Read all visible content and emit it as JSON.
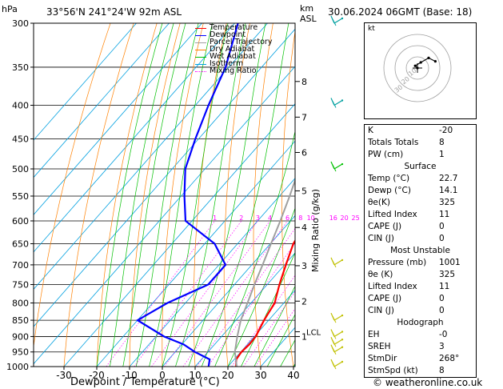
{
  "header": {
    "hpa_unit": "hPa",
    "location": "33°56'N  241°24'W  92m  ASL",
    "km_unit": "km",
    "asl": "ASL",
    "datetime": "30.06.2024  06GMT  (Base: 18)"
  },
  "legend": [
    {
      "label": "Temperature",
      "color": "#ff0000"
    },
    {
      "label": "Dewpoint",
      "color": "#0000ff"
    },
    {
      "label": "Parcel Trajectory",
      "color": "#a0a0a0"
    },
    {
      "label": "Dry Adiabat",
      "color": "#ff8000"
    },
    {
      "label": "Wet Adiabat",
      "color": "#00c000"
    },
    {
      "label": "Isotherm",
      "color": "#00a0e0"
    },
    {
      "label": "Mixing Ratio",
      "color": "#ff00ff"
    }
  ],
  "chart_data": {
    "type": "line",
    "xlabel": "Dewpoint / Temperature (°C)",
    "ylabel": "hPa",
    "right_axis_label": "Mixing Ratio (g/kg)",
    "x_ticks": [
      -30,
      -20,
      -10,
      0,
      10,
      20,
      30,
      40
    ],
    "pressure_ticks": [
      300,
      350,
      400,
      450,
      500,
      550,
      600,
      650,
      700,
      750,
      800,
      850,
      900,
      950,
      1000
    ],
    "km_ticks": [
      {
        "label": "8",
        "p": 368
      },
      {
        "label": "7",
        "p": 417
      },
      {
        "label": "6",
        "p": 472
      },
      {
        "label": "5",
        "p": 540
      },
      {
        "label": "4",
        "p": 614
      },
      {
        "label": "3",
        "p": 702
      },
      {
        "label": "2",
        "p": 795
      },
      {
        "label": "1",
        "p": 900
      }
    ],
    "lcl": {
      "label": "LCL",
      "p": 885
    },
    "mixing_ratio_labels": [
      "1",
      "2",
      "3",
      "4",
      "6",
      "8",
      "10",
      "16",
      "20",
      "25"
    ],
    "mixing_ratio_values": [
      1,
      2,
      3,
      4,
      6,
      8,
      10,
      16,
      20,
      25
    ],
    "series": [
      {
        "name": "Temperature",
        "color": "#ff0000",
        "points": [
          [
            1000,
            22.5
          ],
          [
            975,
            20.6
          ],
          [
            950,
            20.2
          ],
          [
            925,
            20.6
          ],
          [
            900,
            20.4
          ],
          [
            850,
            18.6
          ],
          [
            800,
            17.2
          ],
          [
            750,
            13.7
          ],
          [
            700,
            10.4
          ],
          [
            650,
            7.0
          ],
          [
            600,
            5.2
          ],
          [
            550,
            0.2
          ],
          [
            500,
            -5.0
          ],
          [
            450,
            -11.6
          ],
          [
            400,
            -19.0
          ],
          [
            350,
            -27.4
          ],
          [
            300,
            -37.7
          ]
        ]
      },
      {
        "name": "Dewpoint",
        "color": "#0000ff",
        "points": [
          [
            1000,
            14.1
          ],
          [
            975,
            12.5
          ],
          [
            950,
            6.0
          ],
          [
            925,
            0.5
          ],
          [
            900,
            -7.5
          ],
          [
            850,
            -20.0
          ],
          [
            800,
            -15.5
          ],
          [
            750,
            -8.0
          ],
          [
            700,
            -8.0
          ],
          [
            650,
            -17.0
          ],
          [
            600,
            -32.0
          ],
          [
            550,
            -39.0
          ],
          [
            500,
            -46.0
          ],
          [
            450,
            -51.0
          ],
          [
            400,
            -56.0
          ],
          [
            350,
            -61.0
          ],
          [
            300,
            -69.0
          ]
        ]
      },
      {
        "name": "Parcel Trajectory",
        "color": "#a0a0a0",
        "points": [
          [
            1000,
            22.7
          ],
          [
            950,
            18.2
          ],
          [
            900,
            14.8
          ],
          [
            850,
            11.5
          ],
          [
            800,
            8.9
          ],
          [
            750,
            6.1
          ],
          [
            700,
            3.3
          ],
          [
            650,
            0.2
          ],
          [
            600,
            -3.1
          ],
          [
            550,
            -6.9
          ],
          [
            500,
            -11.3
          ],
          [
            450,
            -16.4
          ],
          [
            400,
            -22.4
          ],
          [
            350,
            -29.5
          ],
          [
            300,
            -38.0
          ]
        ]
      }
    ],
    "wind_barbs": [
      {
        "p": 1000,
        "color": "#c0c000"
      },
      {
        "p": 950,
        "color": "#c0c000"
      },
      {
        "p": 925,
        "color": "#c0c000"
      },
      {
        "p": 900,
        "color": "#c0c000"
      },
      {
        "p": 850,
        "color": "#c0c000"
      },
      {
        "p": 700,
        "color": "#c0c000"
      },
      {
        "p": 500,
        "color": "#00c000"
      },
      {
        "p": 400,
        "color": "#00a0a0"
      },
      {
        "p": 300,
        "color": "#00a0a0"
      }
    ]
  },
  "hodograph": {
    "label": "kt",
    "ring_labels": [
      "10",
      "20",
      "30"
    ],
    "trace": [
      [
        0,
        0
      ],
      [
        -2,
        2
      ],
      [
        3,
        5
      ],
      [
        10,
        9
      ],
      [
        16,
        6
      ]
    ]
  },
  "indices": [
    {
      "k": "K",
      "v": "-20"
    },
    {
      "k": "Totals Totals",
      "v": "8"
    },
    {
      "k": "PW (cm)",
      "v": "1"
    }
  ],
  "surface": {
    "title": "Surface",
    "rows": [
      {
        "k": "Temp (°C)",
        "v": "22.7"
      },
      {
        "k": "Dewp (°C)",
        "v": "14.1"
      },
      {
        "k": "θe(K)",
        "v": "325"
      },
      {
        "k": "Lifted Index",
        "v": "11"
      },
      {
        "k": "CAPE (J)",
        "v": "0"
      },
      {
        "k": "CIN (J)",
        "v": "0"
      }
    ]
  },
  "most_unstable": {
    "title": "Most Unstable",
    "rows": [
      {
        "k": "Pressure (mb)",
        "v": "1001"
      },
      {
        "k": "θe (K)",
        "v": "325"
      },
      {
        "k": "Lifted Index",
        "v": "11"
      },
      {
        "k": "CAPE (J)",
        "v": "0"
      },
      {
        "k": "CIN (J)",
        "v": "0"
      }
    ]
  },
  "hodo_table": {
    "title": "Hodograph",
    "rows": [
      {
        "k": "EH",
        "v": "-0"
      },
      {
        "k": "SREH",
        "v": "3"
      },
      {
        "k": "StmDir",
        "v": "268°"
      },
      {
        "k": "StmSpd (kt)",
        "v": "8"
      }
    ]
  },
  "copyright": "© weatheronline.co.uk"
}
